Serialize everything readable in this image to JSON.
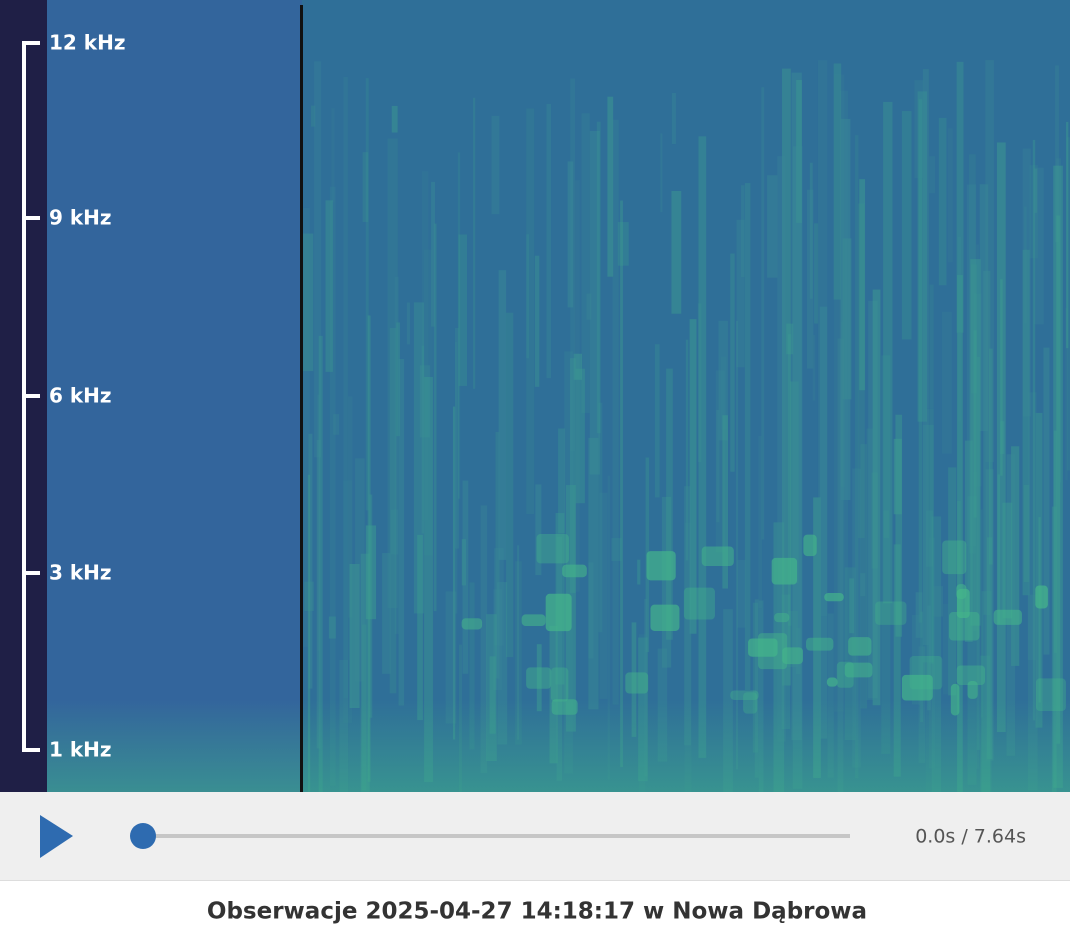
{
  "spectrogram": {
    "frequency_labels": [
      "12 kHz",
      "9 kHz",
      "6 kHz",
      "3 kHz",
      "1 kHz"
    ]
  },
  "player": {
    "time": "0.0s / 7.64s"
  },
  "caption": "Obserwacje 2025-04-27 14:18:17 w Nowa Dąbrowa"
}
